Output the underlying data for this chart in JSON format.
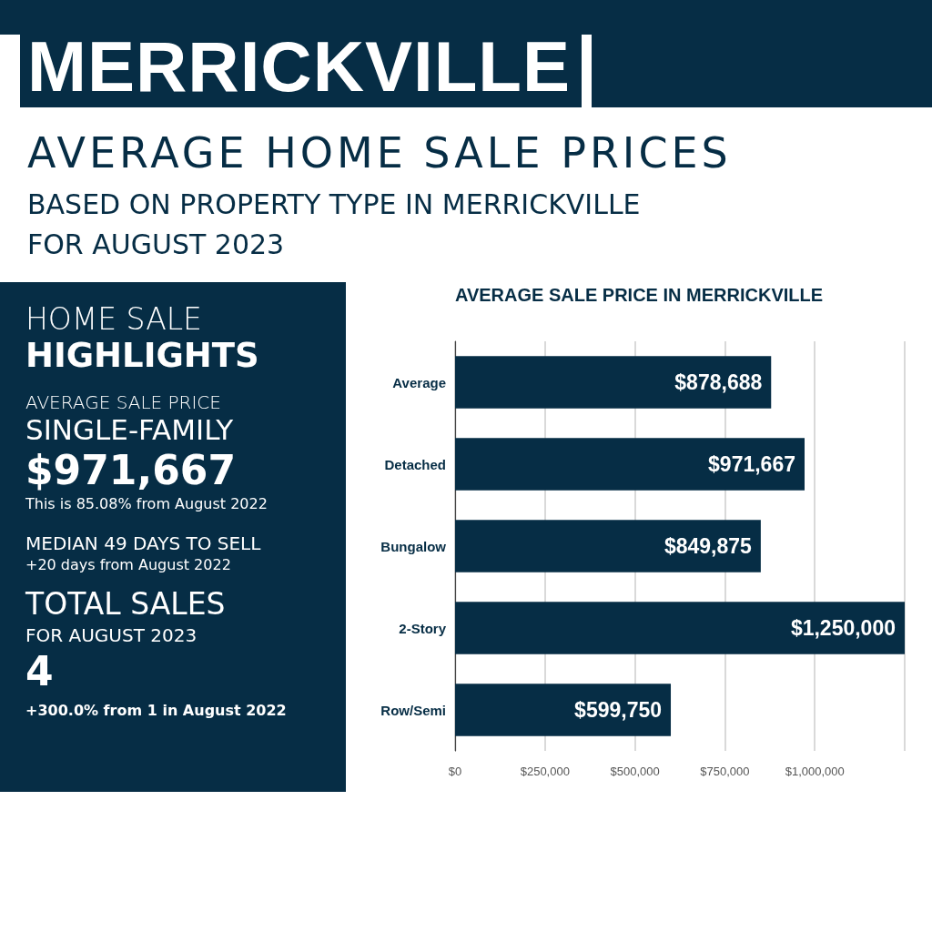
{
  "chart_data": [
    {
      "type": "other",
      "title": "MERRICKVILLE",
      "subtitle": "AVERAGE HOME SALE PRICES",
      "annotations": [
        "BASED ON PROPERTY TYPE IN MERRICKVILLE",
        "FOR AUGUST 2023"
      ]
    },
    {
      "type": "other",
      "title": "HOME SALE",
      "subtitle": "HIGHLIGHTS",
      "annotations": [
        "AVERAGE SALE PRICE",
        "SINGLE-FAMILY",
        "$971,667",
        "This is 85.08% from August 2022",
        "MEDIAN 49 DAYS TO SELL",
        "+20 days from August 2022",
        "TOTAL SALES",
        "FOR AUGUST 2023",
        "4",
        "+300.0% from 1 in August 2022"
      ]
    },
    {
      "type": "bar",
      "title": "AVERAGE SALE PRICE IN MERRICKVILLE",
      "orientation": "horizontal",
      "categories": [
        "Average",
        "Detached",
        "Bungalow",
        "2-Story",
        "Row/Semi"
      ],
      "values": [
        878688,
        971667,
        849875,
        1250000,
        599750
      ],
      "value_labels": [
        "$878,688",
        "$971,667",
        "$849,875",
        "$1,250,000",
        "$599,750"
      ],
      "color": "#062d45",
      "xlim": [
        0,
        1250000
      ],
      "xticks": [
        {
          "value": 0,
          "label": "$0"
        },
        {
          "value": 250000,
          "label": "$250,000"
        },
        {
          "value": 500000,
          "label": "$500,000"
        },
        {
          "value": 750000,
          "label": "$750,000"
        },
        {
          "value": 1000000,
          "label": "$1,000,000"
        },
        {
          "value": 1250000,
          "label": null
        }
      ],
      "grid": "x"
    }
  ]
}
